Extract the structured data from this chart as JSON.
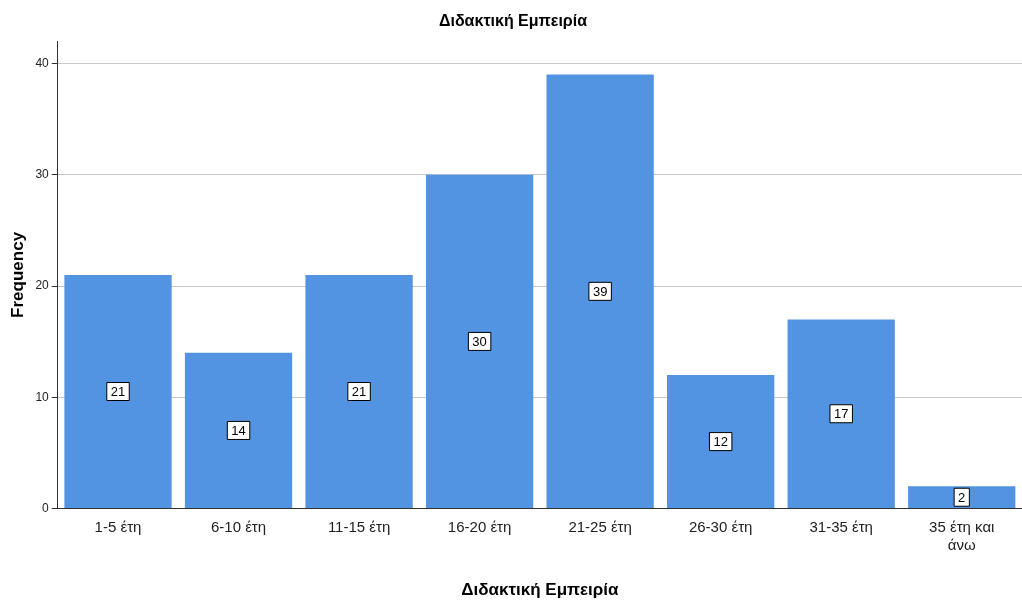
{
  "chart_data": {
    "type": "bar",
    "title": "Διδακτική Εμπειρία",
    "xlabel": "Διδακτική Εμπειρία",
    "ylabel": "Frequency",
    "categories": [
      "1-5 έτη",
      "6-10 έτη",
      "11-15 έτη",
      "16-20 έτη",
      "21-25 έτη",
      "26-30 έτη",
      "31-35 έτη",
      "35 έτη και άνω"
    ],
    "values": [
      21,
      14,
      21,
      30,
      39,
      12,
      17,
      2
    ],
    "color": "#5294e2",
    "ylim": [
      0,
      42
    ],
    "yticks": [
      0,
      10,
      20,
      30,
      40
    ],
    "grid": "y",
    "data_labels": true,
    "legend": false
  }
}
